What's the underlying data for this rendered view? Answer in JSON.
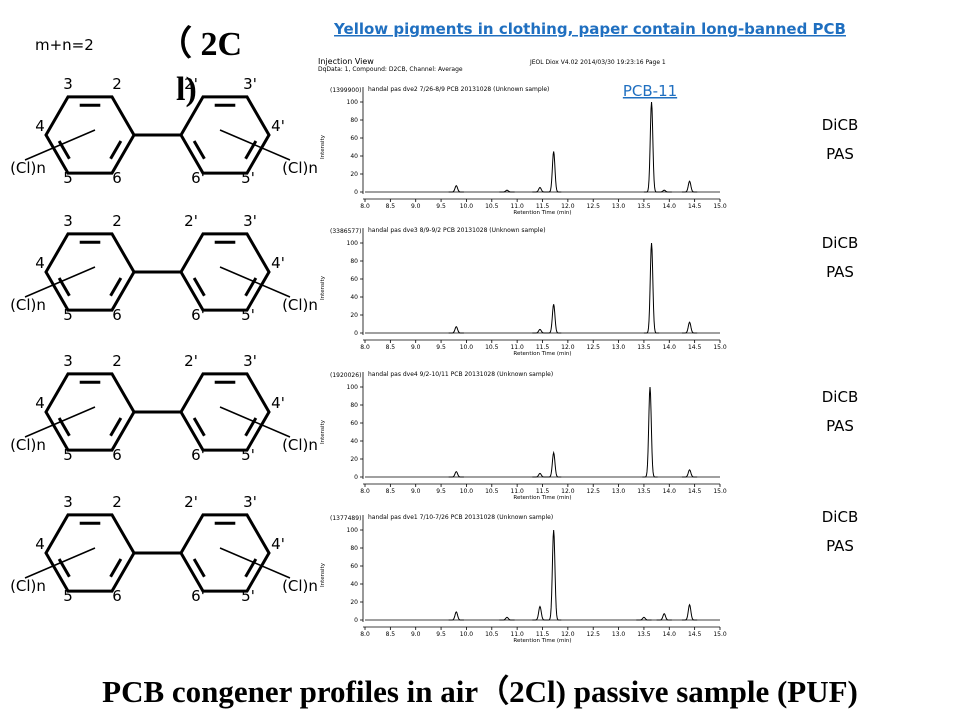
{
  "slide": {
    "corner_label": "m+n=2",
    "title_fragment": [
      "（ 2C",
      "l)"
    ],
    "headline": "Yellow pigments in clothing, paper contain long-banned PCB",
    "callout": "PCB-11",
    "footer_title": "PCB congener profiles in air（2Cl) passive sample (PUF)"
  },
  "structures": [
    {
      "labels": [
        "3",
        "2",
        "2'",
        "3'",
        "4",
        "4'",
        "(Cl)n",
        "(Cl)n",
        "5",
        "6",
        "6'",
        "5'"
      ]
    },
    {
      "labels": [
        "3",
        "2",
        "2'",
        "3'",
        "4",
        "4'",
        "(Cl)n",
        "(Cl)n",
        "5",
        "6",
        "6'",
        "5'"
      ]
    },
    {
      "labels": [
        "3",
        "2",
        "2'",
        "3'",
        "4",
        "4'",
        "(Cl)n",
        "(Cl)n",
        "5",
        "6",
        "6'",
        "5'"
      ]
    },
    {
      "labels": [
        "3",
        "2",
        "2'",
        "3'",
        "4",
        "4'",
        "(Cl)n",
        "(Cl)n",
        "5",
        "6",
        "6'",
        "5'"
      ]
    }
  ],
  "chart_data": [
    {
      "type": "chromatogram",
      "title": "Injection View",
      "subtitle": "DqData: 1, Compound: D2CB, Channel: Average",
      "meta": "JEOL Diox V4.02 2014/03/30 19:23:16 Page 1",
      "scale": "(1399900)",
      "sample": "handal pas dve2 7/26-8/9 PCB 20131028 (Unknown sample)",
      "xlabel": "Retention Time (min)",
      "ylabel": "Intensity",
      "xlim": [
        8.0,
        15.0
      ],
      "ylim": [
        0,
        110
      ],
      "xticks": [
        {
          "value": 8.0,
          "label": "8.0"
        },
        {
          "value": 8.5,
          "label": "8.5"
        },
        {
          "value": 9.0,
          "label": "9.0"
        },
        {
          "value": 9.5,
          "label": "9.5"
        },
        {
          "value": 10.0,
          "label": "10.0"
        },
        {
          "value": 10.5,
          "label": "10.5"
        },
        {
          "value": 11.0,
          "label": "11.0"
        },
        {
          "value": 11.5,
          "label": "11.5"
        },
        {
          "value": 12.0,
          "label": "12.0"
        },
        {
          "value": 12.5,
          "label": "12.5"
        },
        {
          "value": 13.0,
          "label": "13.0"
        },
        {
          "value": 13.5,
          "label": "13.5"
        },
        {
          "value": 14.0,
          "label": "14.0"
        },
        {
          "value": 14.5,
          "label": "14.5"
        },
        {
          "value": 15.0,
          "label": "15.0"
        }
      ],
      "yticks": [
        0,
        20,
        40,
        60,
        80,
        100
      ],
      "x": [
        9.8,
        10.8,
        11.45,
        11.72,
        13.65,
        13.9,
        14.4
      ],
      "values": [
        7,
        2,
        5,
        45,
        100,
        2,
        12
      ],
      "color": "#000000",
      "tags": [
        "DiCB",
        "PAS"
      ]
    },
    {
      "type": "chromatogram",
      "scale": "(3386577)",
      "sample": "handal pas dve3 8/9-9/2 PCB 20131028 (Unknown sample)",
      "xlabel": "Retention Time (min)",
      "ylabel": "Intensity",
      "xlim": [
        8.0,
        15.0
      ],
      "ylim": [
        0,
        110
      ],
      "xticks": [
        {
          "value": 8.0,
          "label": "8.0"
        },
        {
          "value": 8.5,
          "label": "8.5"
        },
        {
          "value": 9.0,
          "label": "9.0"
        },
        {
          "value": 9.5,
          "label": "9.5"
        },
        {
          "value": 10.0,
          "label": "10.0"
        },
        {
          "value": 10.5,
          "label": "10.5"
        },
        {
          "value": 11.0,
          "label": "11.0"
        },
        {
          "value": 11.5,
          "label": "11.5"
        },
        {
          "value": 12.0,
          "label": "12.0"
        },
        {
          "value": 12.5,
          "label": "12.5"
        },
        {
          "value": 13.0,
          "label": "13.0"
        },
        {
          "value": 13.5,
          "label": "13.5"
        },
        {
          "value": 14.0,
          "label": "14.0"
        },
        {
          "value": 14.5,
          "label": "14.5"
        },
        {
          "value": 15.0,
          "label": "15.0"
        }
      ],
      "yticks": [
        0,
        20,
        40,
        60,
        80,
        100
      ],
      "x": [
        9.8,
        11.45,
        11.72,
        13.65,
        14.4
      ],
      "values": [
        7,
        4,
        32,
        100,
        12
      ],
      "color": "#000000",
      "tags": [
        "DiCB",
        "PAS"
      ]
    },
    {
      "type": "chromatogram",
      "scale": "(1920026)",
      "sample": "handal pas dve4 9/2-10/11 PCB 20131028 (Unknown sample)",
      "xlabel": "Retention Time (min)",
      "ylabel": "Intensity",
      "xlim": [
        8.0,
        15.0
      ],
      "ylim": [
        0,
        110
      ],
      "xticks": [
        {
          "value": 8.0,
          "label": "8.0"
        },
        {
          "value": 8.5,
          "label": "8.5"
        },
        {
          "value": 9.0,
          "label": "9.0"
        },
        {
          "value": 9.5,
          "label": "9.5"
        },
        {
          "value": 10.0,
          "label": "10.0"
        },
        {
          "value": 10.5,
          "label": "10.5"
        },
        {
          "value": 11.0,
          "label": "11.0"
        },
        {
          "value": 11.5,
          "label": "11.5"
        },
        {
          "value": 12.0,
          "label": "12.0"
        },
        {
          "value": 12.5,
          "label": "12.5"
        },
        {
          "value": 13.0,
          "label": "13.0"
        },
        {
          "value": 13.5,
          "label": "13.5"
        },
        {
          "value": 14.0,
          "label": "14.0"
        },
        {
          "value": 14.5,
          "label": "14.5"
        },
        {
          "value": 15.0,
          "label": "15.0"
        }
      ],
      "yticks": [
        0,
        20,
        40,
        60,
        80,
        100
      ],
      "x": [
        9.8,
        11.45,
        11.72,
        13.62,
        14.4
      ],
      "values": [
        6,
        4,
        27,
        100,
        8
      ],
      "color": "#000000",
      "tags": [
        "DiCB",
        "PAS"
      ]
    },
    {
      "type": "chromatogram",
      "scale": "(1377489)",
      "sample": "handal pas dve1 7/10-7/26 PCB 20131028 (Unknown sample)",
      "xlabel": "Retention Time (min)",
      "ylabel": "Intensity",
      "xlim": [
        8.0,
        15.0
      ],
      "ylim": [
        0,
        110
      ],
      "xticks": [
        {
          "value": 8.0,
          "label": "8.0"
        },
        {
          "value": 8.5,
          "label": "8.5"
        },
        {
          "value": 9.0,
          "label": "9.0"
        },
        {
          "value": 9.5,
          "label": "9.5"
        },
        {
          "value": 10.0,
          "label": "10.0"
        },
        {
          "value": 10.5,
          "label": "10.5"
        },
        {
          "value": 11.0,
          "label": "11.0"
        },
        {
          "value": 11.5,
          "label": "11.5"
        },
        {
          "value": 12.0,
          "label": "12.0"
        },
        {
          "value": 12.5,
          "label": "12.5"
        },
        {
          "value": 13.0,
          "label": "13.0"
        },
        {
          "value": 13.5,
          "label": "13.5"
        },
        {
          "value": 14.0,
          "label": "14.0"
        },
        {
          "value": 14.5,
          "label": "14.5"
        },
        {
          "value": 15.0,
          "label": "15.0"
        }
      ],
      "yticks": [
        0,
        20,
        40,
        60,
        80,
        100
      ],
      "x": [
        9.8,
        10.8,
        11.45,
        11.72,
        13.5,
        13.9,
        14.4
      ],
      "values": [
        9,
        3,
        15,
        100,
        3,
        7,
        17
      ],
      "color": "#000000",
      "tags": [
        "DiCB",
        "PAS"
      ]
    }
  ]
}
